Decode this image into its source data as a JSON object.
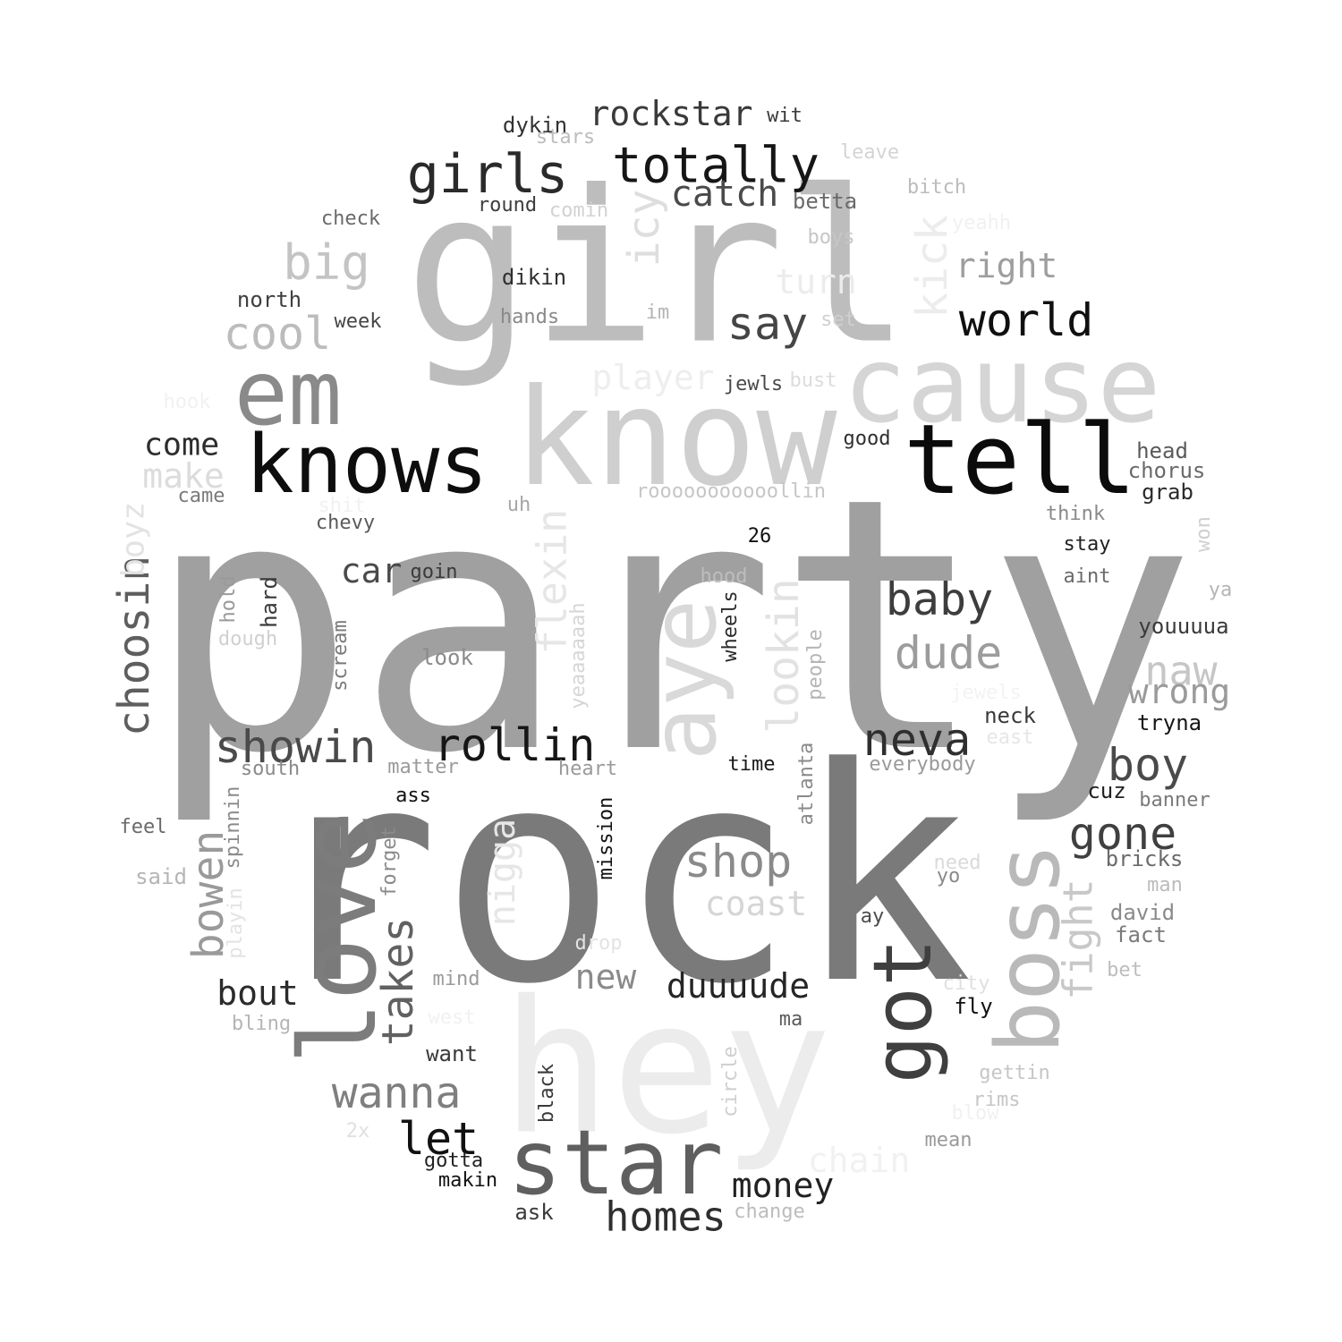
{
  "words": [
    {
      "text": "party",
      "color": "#a0a0a0"
    },
    {
      "text": "rock",
      "color": "#7a7a7a"
    },
    {
      "text": "girl",
      "color": "#bdbdbd"
    },
    {
      "text": "hey",
      "color": "#ececec"
    },
    {
      "text": "know",
      "color": "#cfcfcf"
    },
    {
      "text": "cause",
      "color": "#d5d5d5"
    },
    {
      "text": "tell",
      "color": "#0b0b0b"
    },
    {
      "text": "knows",
      "color": "#0d0d0d"
    },
    {
      "text": "em",
      "color": "#8a8a8a"
    },
    {
      "text": "love",
      "color": "#7c7c7c"
    },
    {
      "text": "star",
      "color": "#5f5f5f"
    },
    {
      "text": "boss",
      "color": "#b9b9b9"
    },
    {
      "text": "got",
      "color": "#3f3f3f"
    },
    {
      "text": "aye",
      "color": "#d9d9d9"
    },
    {
      "text": "girls",
      "color": "#2a2a2a"
    },
    {
      "text": "totally",
      "color": "#161616"
    },
    {
      "text": "rockstar",
      "color": "#3a3a3a"
    },
    {
      "text": "world",
      "color": "#101010"
    },
    {
      "text": "say",
      "color": "#454545"
    },
    {
      "text": "catch",
      "color": "#4a4a4a"
    },
    {
      "text": "big",
      "color": "#c4c4c4"
    },
    {
      "text": "cool",
      "color": "#bcbcbc"
    },
    {
      "text": "icy",
      "color": "#dedede"
    },
    {
      "text": "kick",
      "color": "#ececec"
    },
    {
      "text": "right",
      "color": "#9e9e9e"
    },
    {
      "text": "turn",
      "color": "#ececec"
    },
    {
      "text": "player",
      "color": "#eeeeee"
    },
    {
      "text": "rollin",
      "color": "#161616"
    },
    {
      "text": "showin",
      "color": "#4a4a4a"
    },
    {
      "text": "neva",
      "color": "#2f2f2f"
    },
    {
      "text": "boy",
      "color": "#4a4a4a"
    },
    {
      "text": "baby",
      "color": "#3d3d3d"
    },
    {
      "text": "dude",
      "color": "#9c9c9c"
    },
    {
      "text": "naw",
      "color": "#c6c6c6"
    },
    {
      "text": "wrong",
      "color": "#9a9a9a"
    },
    {
      "text": "gone",
      "color": "#404040"
    },
    {
      "text": "fight",
      "color": "#c8c8c8"
    },
    {
      "text": "shop",
      "color": "#8a8a8a"
    },
    {
      "text": "coast",
      "color": "#d5d5d5"
    },
    {
      "text": "choosin",
      "color": "#5e5e5e"
    },
    {
      "text": "bowen",
      "color": "#9a9a9a"
    },
    {
      "text": "takes",
      "color": "#616161"
    },
    {
      "text": "nigga",
      "color": "#e6e6e6"
    },
    {
      "text": "flexin",
      "color": "#e6e6e6"
    },
    {
      "text": "lookin",
      "color": "#e2e2e2"
    },
    {
      "text": "wanna",
      "color": "#7f7f7f"
    },
    {
      "text": "let",
      "color": "#111111"
    },
    {
      "text": "homes",
      "color": "#2f2f2f"
    },
    {
      "text": "money",
      "color": "#222222"
    },
    {
      "text": "duuuude",
      "color": "#252525"
    },
    {
      "text": "new",
      "color": "#8a8a8a"
    },
    {
      "text": "bout",
      "color": "#2b2b2b"
    },
    {
      "text": "car",
      "color": "#4a4a4a"
    },
    {
      "text": "come",
      "color": "#2d2d2d"
    },
    {
      "text": "make",
      "color": "#dcdcdc"
    },
    {
      "text": "boyz",
      "color": "#e3e3e3"
    },
    {
      "text": "chain",
      "color": "#f1f1f1"
    },
    {
      "text": "dykin",
      "color": "#323232"
    },
    {
      "text": "stars",
      "color": "#bdbdbd"
    },
    {
      "text": "wit",
      "color": "#3a3a3a"
    },
    {
      "text": "leave",
      "color": "#d4d4d4"
    },
    {
      "text": "bitch",
      "color": "#bcbcbc"
    },
    {
      "text": "yeahh",
      "color": "#f1f1f1"
    },
    {
      "text": "boys",
      "color": "#c6c6c6"
    },
    {
      "text": "betta",
      "color": "#6a6a6a"
    },
    {
      "text": "round",
      "color": "#3d3d3d"
    },
    {
      "text": "comin",
      "color": "#d2d2d2"
    },
    {
      "text": "check",
      "color": "#6a6a6a"
    },
    {
      "text": "north",
      "color": "#3f3f3f"
    },
    {
      "text": "week",
      "color": "#454545"
    },
    {
      "text": "dikin",
      "color": "#2f2f2f"
    },
    {
      "text": "hands",
      "color": "#8a8a8a"
    },
    {
      "text": "im",
      "color": "#b4b4b4"
    },
    {
      "text": "set",
      "color": "#d0d0d0"
    },
    {
      "text": "jewls",
      "color": "#4a4a4a"
    },
    {
      "text": "bust",
      "color": "#dcdcdc"
    },
    {
      "text": "hook",
      "color": "#f1f1f1"
    },
    {
      "text": "good",
      "color": "#2f2f2f"
    },
    {
      "text": "head",
      "color": "#5a5a5a"
    },
    {
      "text": "chorus",
      "color": "#6a6a6a"
    },
    {
      "text": "grab",
      "color": "#2a2a2a"
    },
    {
      "text": "came",
      "color": "#7a7a7a"
    },
    {
      "text": "shit",
      "color": "#f1f1f1"
    },
    {
      "text": "uh",
      "color": "#a6a6a6"
    },
    {
      "text": "rooooooooooollin",
      "color": "#c6c6c6"
    },
    {
      "text": "chevy",
      "color": "#5a5a5a"
    },
    {
      "text": "26",
      "color": "#111111"
    },
    {
      "text": "think",
      "color": "#8a8a8a"
    },
    {
      "text": "stay",
      "color": "#222222"
    },
    {
      "text": "won",
      "color": "#cfcfcf"
    },
    {
      "text": "goin",
      "color": "#3a3a3a"
    },
    {
      "text": "aint",
      "color": "#6a6a6a"
    },
    {
      "text": "ya",
      "color": "#b5b5b5"
    },
    {
      "text": "hold",
      "color": "#9a9a9a"
    },
    {
      "text": "hard",
      "color": "#3a3a3a"
    },
    {
      "text": "dough",
      "color": "#d0d0d0"
    },
    {
      "text": "scream",
      "color": "#7a7a7a"
    },
    {
      "text": "yeaaaaaah",
      "color": "#d6d6d6"
    },
    {
      "text": "hood",
      "color": "#bdbdbd"
    },
    {
      "text": "wheels",
      "color": "#2a2a2a"
    },
    {
      "text": "people",
      "color": "#b5b5b5"
    },
    {
      "text": "look",
      "color": "#8a8a8a"
    },
    {
      "text": "youuuua",
      "color": "#3a3a3a"
    },
    {
      "text": "jewels",
      "color": "#f3f3f3"
    },
    {
      "text": "neck",
      "color": "#3a3a3a"
    },
    {
      "text": "east",
      "color": "#e6e6e6"
    },
    {
      "text": "tryna",
      "color": "#161616"
    },
    {
      "text": "everybody",
      "color": "#9a9a9a"
    },
    {
      "text": "south",
      "color": "#8a8a8a"
    },
    {
      "text": "matter",
      "color": "#9a9a9a"
    },
    {
      "text": "heart",
      "color": "#9a9a9a"
    },
    {
      "text": "time",
      "color": "#1a1a1a"
    },
    {
      "text": "atlanta",
      "color": "#8a8a8a"
    },
    {
      "text": "cuz",
      "color": "#222222"
    },
    {
      "text": "banner",
      "color": "#7a7a7a"
    },
    {
      "text": "ass",
      "color": "#111111"
    },
    {
      "text": "spinnin",
      "color": "#8a8a8a"
    },
    {
      "text": "feel",
      "color": "#6a6a6a"
    },
    {
      "text": "forget",
      "color": "#8a8a8a"
    },
    {
      "text": "mission",
      "color": "#111111"
    },
    {
      "text": "bricks",
      "color": "#6a6a6a"
    },
    {
      "text": "need",
      "color": "#dadada"
    },
    {
      "text": "yo",
      "color": "#8a8a8a"
    },
    {
      "text": "man",
      "color": "#bcbcbc"
    },
    {
      "text": "said",
      "color": "#b5b5b5"
    },
    {
      "text": "playin",
      "color": "#e3e3e3"
    },
    {
      "text": "drop",
      "color": "#e3e3e3"
    },
    {
      "text": "ay",
      "color": "#4a4a4a"
    },
    {
      "text": "david",
      "color": "#8a8a8a"
    },
    {
      "text": "fact",
      "color": "#7a7a7a"
    },
    {
      "text": "mind",
      "color": "#9a9a9a"
    },
    {
      "text": "bet",
      "color": "#bdbdbd"
    },
    {
      "text": "city",
      "color": "#e0e0e0"
    },
    {
      "text": "west",
      "color": "#f1f1f1"
    },
    {
      "text": "fly",
      "color": "#111111"
    },
    {
      "text": "bling",
      "color": "#b5b5b5"
    },
    {
      "text": "ma",
      "color": "#5a5a5a"
    },
    {
      "text": "want",
      "color": "#3a3a3a"
    },
    {
      "text": "circle",
      "color": "#cfcfcf"
    },
    {
      "text": "gettin",
      "color": "#c6c6c6"
    },
    {
      "text": "rims",
      "color": "#c6c6c6"
    },
    {
      "text": "black",
      "color": "#3a3a3a"
    },
    {
      "text": "blow",
      "color": "#f1f1f1"
    },
    {
      "text": "2x",
      "color": "#e0e0e0"
    },
    {
      "text": "mean",
      "color": "#9a9a9a"
    },
    {
      "text": "gotta",
      "color": "#222222"
    },
    {
      "text": "makin",
      "color": "#111111"
    },
    {
      "text": "ask",
      "color": "#3a3a3a"
    },
    {
      "text": "change",
      "color": "#bcbcbc"
    }
  ]
}
